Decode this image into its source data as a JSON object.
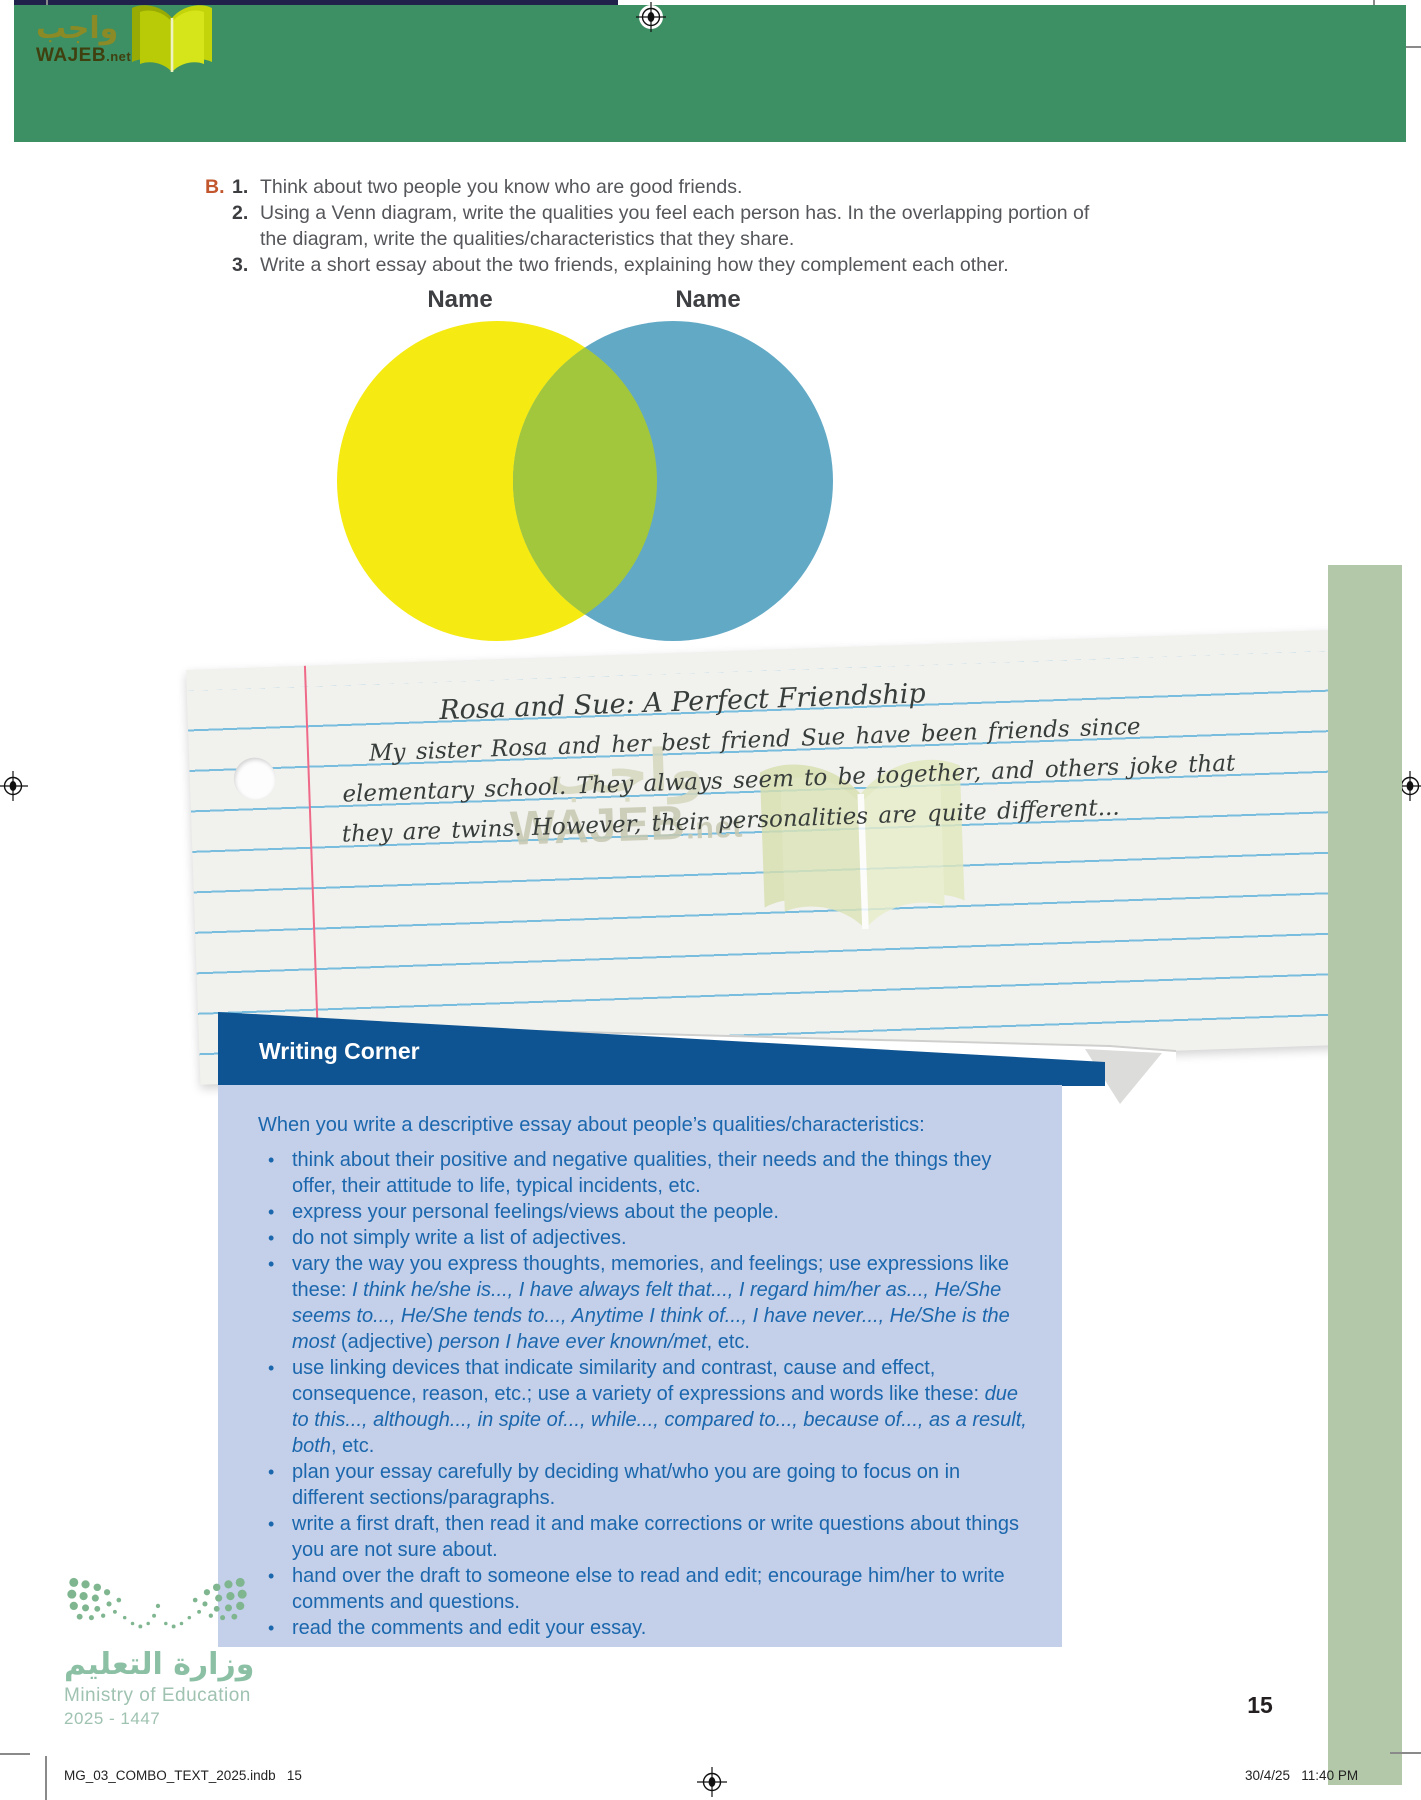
{
  "brand": {
    "arabic": "واجب",
    "latin": "WAJEB",
    "tld": ".net"
  },
  "exercise": {
    "label": "B.",
    "items": [
      {
        "num": "1.",
        "text": "Think about two people you know who are good friends."
      },
      {
        "num": "2.",
        "text": "Using a Venn diagram, write the qualities you feel each person has. In the overlapping portion of the diagram, write the qualities/characteristics that they share."
      },
      {
        "num": "3.",
        "text": "Write a short essay about the two friends, explaining how they complement each other."
      }
    ]
  },
  "venn": {
    "left_label": "Name",
    "right_label": "Name",
    "colors": {
      "left": "#f5ea12",
      "right": "#62a9c6",
      "overlap": "#a3c73c"
    }
  },
  "essay": {
    "title": "Rosa and Sue: A Perfect Friendship",
    "body": [
      "My sister Rosa and her best friend Sue have been friends since",
      "elementary school. They always seem to be together, and others joke that",
      "they are twins. However, their personalities are quite different..."
    ]
  },
  "watermark": {
    "arabic": "واجب",
    "latin": "WAJEB",
    "tld": ".net"
  },
  "writing_corner": {
    "title": "Writing Corner",
    "intro": "When you write a descriptive essay about people’s qualities/characteristics:",
    "bullets": [
      [
        {
          "t": "think about their positive and negative qualities, their needs and the things they offer, their attitude to life, typical incidents, etc."
        }
      ],
      [
        {
          "t": "express your personal feelings/views about the people."
        }
      ],
      [
        {
          "t": "do not simply write a list of adjectives."
        }
      ],
      [
        {
          "t": "vary the way you express thoughts, memories, and feelings; use expressions like these: "
        },
        {
          "t": "I think he/she is..., I have always felt that..., I regard him/her as..., He/She seems to..., He/She tends to..., Anytime I think of..., I have never..., He/She is the most ",
          "i": true
        },
        {
          "t": "(adjective) "
        },
        {
          "t": "person I have ever known/met",
          "i": true
        },
        {
          "t": ", etc."
        }
      ],
      [
        {
          "t": "use linking devices that indicate similarity and contrast, cause and effect, consequence, reason, etc.; use a variety of expressions and words like these: "
        },
        {
          "t": "due to this..., although..., in spite of..., while..., compared to..., because of..., as a result, both",
          "i": true
        },
        {
          "t": ", etc."
        }
      ],
      [
        {
          "t": "plan your essay carefully by deciding what/who you are going to focus on in different sections/paragraphs."
        }
      ],
      [
        {
          "t": "write a first draft, then read it and make corrections or write questions about things you are not sure about."
        }
      ],
      [
        {
          "t": "hand over the draft to someone else to read and edit; encourage him/her to write comments and questions."
        }
      ],
      [
        {
          "t": "read the comments and edit your essay."
        }
      ]
    ]
  },
  "ministry": {
    "arabic": "وزارة التعليم",
    "english": "Ministry of Education",
    "years": "2025 - 1447"
  },
  "page_number": "15",
  "footer": {
    "left": "MG_03_COMBO_TEXT_2025.indb   15",
    "right": "30/4/25   11:40 PM"
  }
}
